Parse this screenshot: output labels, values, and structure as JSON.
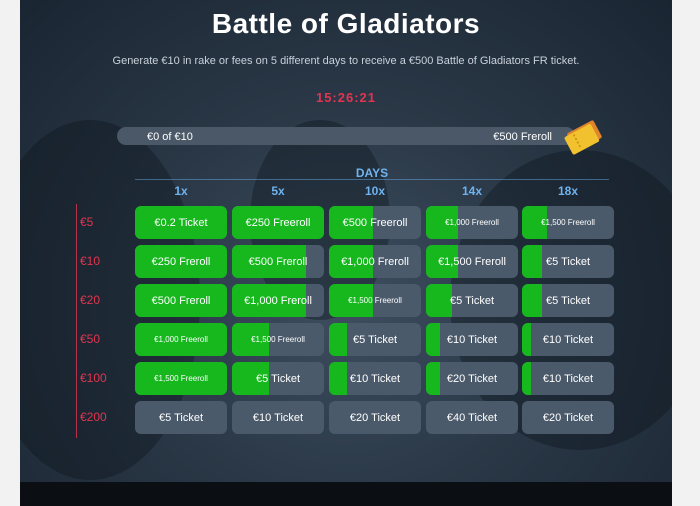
{
  "title": "Battle of Gladiators",
  "subtitle": "Generate €10 in rake or fees on 5 different days to receive a €500 Battle of Gladiators FR ticket.",
  "timer": "15:26:21",
  "progress": {
    "left_label": "€0 of €10",
    "right_label": "€500 Freroll",
    "value": 0.0
  },
  "days_label": "DAYS",
  "columns": [
    "1x",
    "5x",
    "10x",
    "14x",
    "18x"
  ],
  "rows": [
    "€5",
    "€10",
    "€20",
    "€50",
    "€100",
    "€200"
  ],
  "cells": [
    [
      {
        "label": "€0.2 Ticket",
        "fill": 1.0,
        "small": false
      },
      {
        "label": "€250 Freeroll",
        "fill": 1.0,
        "small": false
      },
      {
        "label": "€500 Freeroll",
        "fill": 0.48,
        "small": false
      },
      {
        "label": "€1,000 Freeroll",
        "fill": 0.35,
        "small": true
      },
      {
        "label": "€1,500 Freeroll",
        "fill": 0.27,
        "small": true
      }
    ],
    [
      {
        "label": "€250 Freroll",
        "fill": 1.0,
        "small": false
      },
      {
        "label": "€500 Freroll",
        "fill": 0.8,
        "small": false
      },
      {
        "label": "€1,000 Freroll",
        "fill": 0.48,
        "small": false
      },
      {
        "label": "€1,500 Freroll",
        "fill": 0.35,
        "small": false
      },
      {
        "label": "€5 Ticket",
        "fill": 0.22,
        "small": false
      }
    ],
    [
      {
        "label": "€500 Freroll",
        "fill": 1.0,
        "small": false
      },
      {
        "label": "€1,000 Freroll",
        "fill": 0.8,
        "small": false
      },
      {
        "label": "€1,500 Freeroll",
        "fill": 0.48,
        "small": true
      },
      {
        "label": "€5 Ticket",
        "fill": 0.28,
        "small": false
      },
      {
        "label": "€5 Ticket",
        "fill": 0.22,
        "small": false
      }
    ],
    [
      {
        "label": "€1,000 Freeroll",
        "fill": 1.0,
        "small": true
      },
      {
        "label": "€1,500 Freeroll",
        "fill": 0.4,
        "small": true
      },
      {
        "label": "€5 Ticket",
        "fill": 0.2,
        "small": false
      },
      {
        "label": "€10 Ticket",
        "fill": 0.15,
        "small": false
      },
      {
        "label": "€10 Ticket",
        "fill": 0.1,
        "small": false
      }
    ],
    [
      {
        "label": "€1,500 Freeroll",
        "fill": 1.0,
        "small": true
      },
      {
        "label": "€5 Ticket",
        "fill": 0.4,
        "small": false
      },
      {
        "label": "€10 Ticket",
        "fill": 0.2,
        "small": false
      },
      {
        "label": "€20 Ticket",
        "fill": 0.15,
        "small": false
      },
      {
        "label": "€10 Ticket",
        "fill": 0.1,
        "small": false
      }
    ],
    [
      {
        "label": "€5 Ticket",
        "fill": 0.0,
        "small": false
      },
      {
        "label": "€10 Ticket",
        "fill": 0.0,
        "small": false
      },
      {
        "label": "€20 Ticket",
        "fill": 0.0,
        "small": false
      },
      {
        "label": "€40 Ticket",
        "fill": 0.0,
        "small": false
      },
      {
        "label": "€20 Ticket",
        "fill": 0.0,
        "small": false
      }
    ]
  ],
  "colors": {
    "progress_green": "#16b81e",
    "cell_bg": "#4b5a6b",
    "accent_red": "#e3344f",
    "accent_blue": "#6fb3f0"
  }
}
